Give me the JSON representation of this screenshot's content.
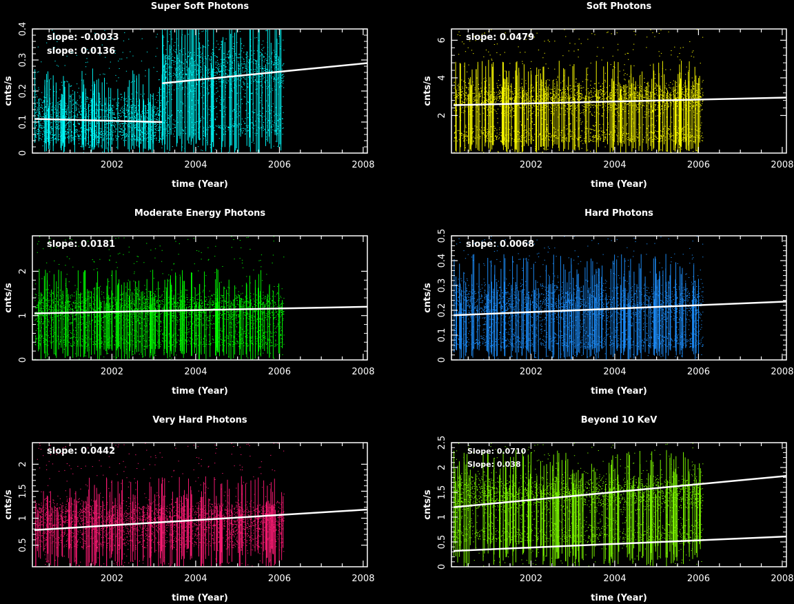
{
  "chart_data": [
    {
      "type": "scatter",
      "title": "Super Soft Photons",
      "xlabel": "time (Year)",
      "ylabel": "cnts/s",
      "xlim": [
        2000.1,
        2008.1
      ],
      "ylim": [
        0,
        0.4
      ],
      "xticks": [
        2002,
        2004,
        2006,
        2008
      ],
      "yticks": [
        0,
        0.1,
        0.2,
        0.3,
        0.4
      ],
      "color": "#00ffff",
      "scatter_bands": [
        {
          "x": [
            2000.15,
            2003.2
          ],
          "center": 0.12,
          "spread": 0.06,
          "floor_center": 0.04,
          "floor_spread": 0.025
        },
        {
          "x": [
            2003.2,
            2006.1
          ],
          "center": 0.26,
          "spread": 0.08,
          "floor_center": 0.06,
          "floor_spread": 0.05
        }
      ],
      "fit_lines": [
        {
          "x": [
            2000.15,
            2003.2
          ],
          "y": [
            0.11,
            0.1
          ]
        },
        {
          "x": [
            2003.2,
            2008.1
          ],
          "y": [
            0.225,
            0.29
          ]
        }
      ],
      "annotations": [
        "slope: -0.0033",
        "slope: 0.0136"
      ]
    },
    {
      "type": "scatter",
      "title": "Soft Photons",
      "xlabel": "time (Year)",
      "ylabel": "cnts/s",
      "xlim": [
        2000.1,
        2008.1
      ],
      "ylim": [
        0,
        6.6
      ],
      "xticks": [
        2002,
        2004,
        2006,
        2008
      ],
      "yticks": [
        2,
        4,
        6
      ],
      "color": "#ffff00",
      "scatter_bands": [
        {
          "x": [
            2000.15,
            2006.1
          ],
          "center": 2.9,
          "spread": 0.8,
          "floor_center": 0.6,
          "floor_spread": 0.5
        }
      ],
      "fit_lines": [
        {
          "x": [
            2000.15,
            2008.1
          ],
          "y": [
            2.55,
            2.95
          ]
        }
      ],
      "annotations": [
        "slope: 0.0479"
      ]
    },
    {
      "type": "scatter",
      "title": "Moderate Energy Photons",
      "xlabel": "time (Year)",
      "ylabel": "cnts/s",
      "xlim": [
        2000.1,
        2008.1
      ],
      "ylim": [
        0,
        2.8
      ],
      "xticks": [
        2002,
        2004,
        2006,
        2008
      ],
      "yticks": [
        0,
        1,
        2
      ],
      "color": "#00ff00",
      "scatter_bands": [
        {
          "x": [
            2000.15,
            2006.1
          ],
          "center": 1.15,
          "spread": 0.35,
          "floor_center": 0.3,
          "floor_spread": 0.25
        }
      ],
      "fit_lines": [
        {
          "x": [
            2000.15,
            2008.1
          ],
          "y": [
            1.05,
            1.2
          ]
        }
      ],
      "annotations": [
        "slope: 0.0181"
      ]
    },
    {
      "type": "scatter",
      "title": "Hard Photons",
      "xlabel": "time (Year)",
      "ylabel": "cnts/s",
      "xlim": [
        2000.1,
        2008.1
      ],
      "ylim": [
        0,
        0.5
      ],
      "xticks": [
        2002,
        2004,
        2006,
        2008
      ],
      "yticks": [
        0,
        0.1,
        0.2,
        0.3,
        0.4,
        0.5
      ],
      "color": "#1e90ff",
      "scatter_bands": [
        {
          "x": [
            2000.15,
            2006.1
          ],
          "center": 0.22,
          "spread": 0.08,
          "floor_center": 0.05,
          "floor_spread": 0.04
        }
      ],
      "fit_lines": [
        {
          "x": [
            2000.15,
            2008.1
          ],
          "y": [
            0.18,
            0.235
          ]
        }
      ],
      "annotations": [
        "slope: 0.0068"
      ]
    },
    {
      "type": "scatter",
      "title": "Very Hard  Photons",
      "xlabel": "time (Year)",
      "ylabel": "cnts/s",
      "xlim": [
        2000.1,
        2008.1
      ],
      "ylim": [
        0.1,
        2.4
      ],
      "xticks": [
        2002,
        2004,
        2006,
        2008
      ],
      "yticks": [
        0.5,
        1,
        1.5,
        2
      ],
      "color": "#ff1a75",
      "scatter_bands": [
        {
          "x": [
            2000.15,
            2006.1
          ],
          "center": 1.0,
          "spread": 0.3,
          "floor_center": 0.45,
          "floor_spread": 0.25
        }
      ],
      "fit_lines": [
        {
          "x": [
            2000.15,
            2008.1
          ],
          "y": [
            0.78,
            1.16
          ]
        }
      ],
      "annotations": [
        "slope: 0.0442"
      ]
    },
    {
      "type": "scatter",
      "title": "Beyond 10 KeV",
      "xlabel": "time (Year)",
      "ylabel": "cnts/s",
      "xlim": [
        2000.1,
        2008.1
      ],
      "ylim": [
        0,
        2.5
      ],
      "xticks": [
        2002,
        2004,
        2006,
        2008
      ],
      "yticks": [
        0,
        0.5,
        1,
        1.5,
        2,
        2.5
      ],
      "color": "#7fff00",
      "scatter_bands": [
        {
          "x": [
            2000.15,
            2006.1
          ],
          "center": 1.45,
          "spread": 0.35,
          "floor_center": 0.5,
          "floor_spread": 0.25
        }
      ],
      "fit_lines": [
        {
          "x": [
            2000.15,
            2008.1
          ],
          "y": [
            1.2,
            1.83
          ]
        },
        {
          "x": [
            2000.15,
            2008.1
          ],
          "y": [
            0.32,
            0.61
          ]
        }
      ],
      "annotations": [
        "Slope: 0.0710",
        "Slope: 0.038"
      ]
    }
  ]
}
